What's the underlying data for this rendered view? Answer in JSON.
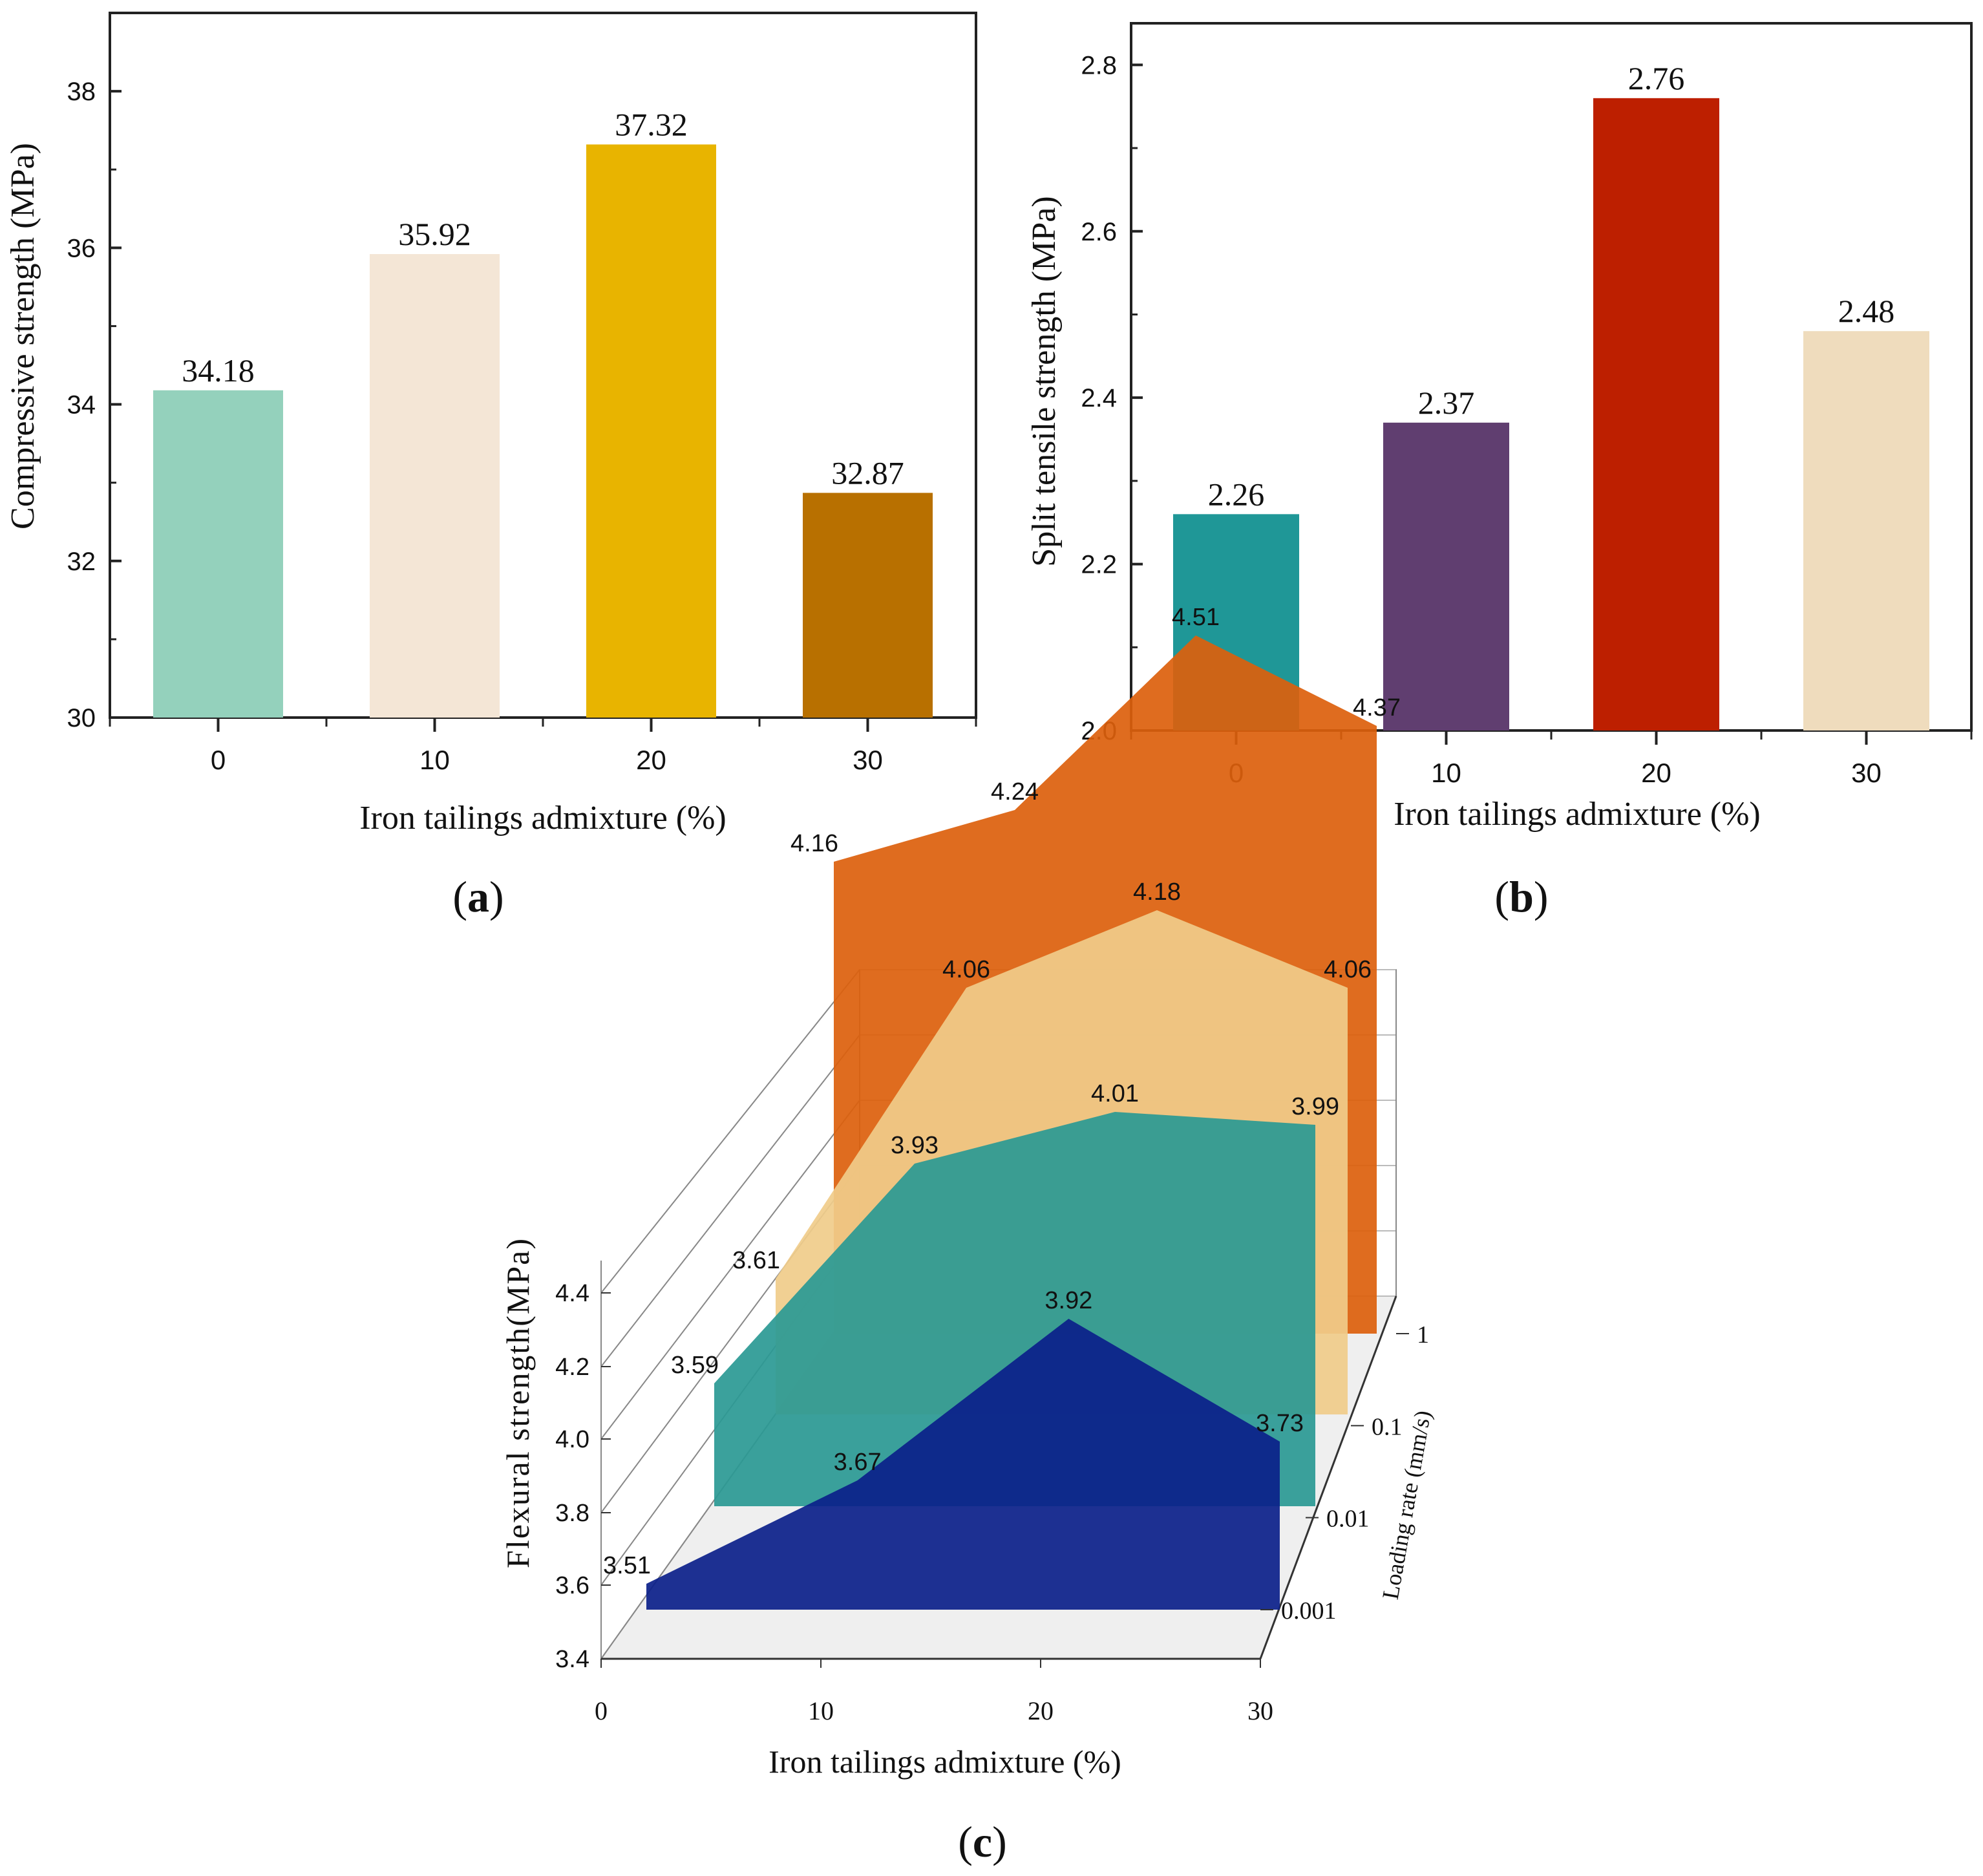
{
  "chart_data": [
    {
      "type": "bar",
      "panel": "(a)",
      "xlabel": "Iron tailings admixture (%)",
      "ylabel": "Compressive strength (MPa)",
      "categories": [
        "0",
        "10",
        "20",
        "30"
      ],
      "values": [
        34.18,
        35.92,
        37.32,
        32.87
      ],
      "value_labels": [
        "34.18",
        "35.92",
        "37.32",
        "32.87"
      ],
      "colors": [
        "#94d1bc",
        "#f4e6d6",
        "#e8b400",
        "#b87000"
      ],
      "ylim": [
        30,
        39
      ],
      "yticks": [
        30,
        32,
        34,
        36,
        38
      ]
    },
    {
      "type": "bar",
      "panel": "(b)",
      "xlabel": "Iron tailings admixture (%)",
      "ylabel": "Split tensile strength (MPa)",
      "categories": [
        "0",
        "10",
        "20",
        "30"
      ],
      "values": [
        2.26,
        2.37,
        2.76,
        2.48
      ],
      "value_labels": [
        "2.26",
        "2.37",
        "2.76",
        "2.48"
      ],
      "colors": [
        "#1f9797",
        "#603e70",
        "#bd1f00",
        "#efdcbd"
      ],
      "ylim": [
        2.0,
        2.85
      ],
      "yticks": [
        "2.0",
        "2.2",
        "2.4",
        "2.6",
        "2.8"
      ]
    },
    {
      "type": "area3d",
      "panel": "(c)",
      "xlabel": "Iron tailings admixture (%)",
      "ylabel": "Flexural strength(MPa)",
      "zlabel": "Loading rate (mm/s)",
      "x": [
        0,
        10,
        20,
        30
      ],
      "xticks": [
        "0",
        "10",
        "20",
        "30"
      ],
      "yticks": [
        "3.4",
        "3.6",
        "3.8",
        "4.0",
        "4.2",
        "4.4"
      ],
      "ylim": [
        3.4,
        4.5
      ],
      "series": [
        {
          "name": "0.001",
          "values": [
            3.51,
            3.67,
            3.92,
            3.73
          ],
          "labels": [
            "3.51",
            "3.67",
            "3.92",
            "3.73"
          ],
          "color": "#0b1f8a"
        },
        {
          "name": "0.01",
          "values": [
            3.59,
            3.93,
            4.01,
            3.99
          ],
          "labels": [
            "3.59",
            "3.93",
            "4.01",
            "3.99"
          ],
          "color": "#2a9994"
        },
        {
          "name": "0.1",
          "values": [
            3.61,
            4.06,
            4.18,
            4.06
          ],
          "labels": [
            "3.61",
            "4.06",
            "4.18",
            "4.06"
          ],
          "color": "#f0cc8a"
        },
        {
          "name": "1",
          "values": [
            4.16,
            4.24,
            4.51,
            4.37
          ],
          "labels": [
            "4.16",
            "4.24",
            "4.51",
            "4.37"
          ],
          "color": "#dc5f0c"
        }
      ]
    }
  ]
}
